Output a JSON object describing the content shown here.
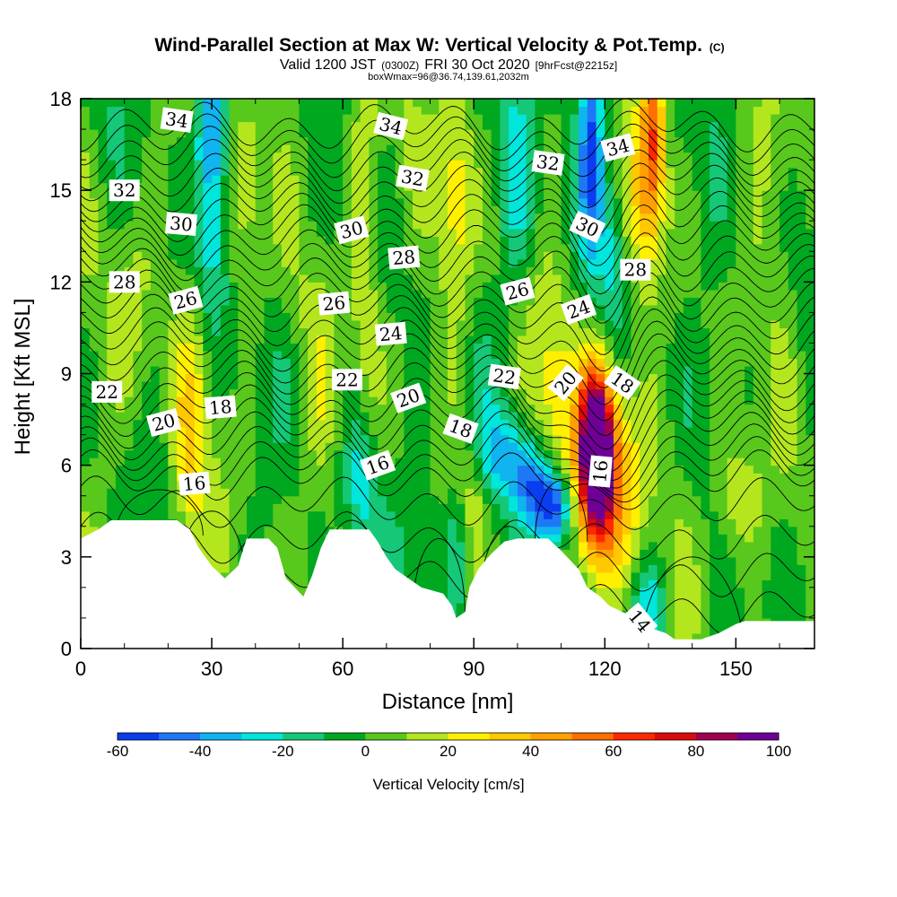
{
  "chart_data": {
    "type": "heatmap",
    "title": "Wind-Parallel Section at Max W: Vertical Velocity & Pot.Temp.",
    "title_mark": "(C)",
    "subtitle_parts": [
      "Valid 1200 JST",
      "(0300Z)",
      "FRI 30 Oct 2020",
      "[9hrFcst@2215z]"
    ],
    "subtitle2": "boxWmax=96@36.74,139.61,2032m",
    "xlabel": "Distance [nm]",
    "ylabel": "Height [Kft MSL]",
    "xlim": [
      0,
      168
    ],
    "ylim": [
      0,
      18
    ],
    "xticks": [
      0,
      30,
      60,
      90,
      120,
      150
    ],
    "yticks": [
      0,
      3,
      6,
      9,
      12,
      15,
      18
    ],
    "colorbar": {
      "label": "Vertical Velocity [cm/s]",
      "levels": [
        -60,
        -50,
        -40,
        -30,
        -20,
        -10,
        0,
        10,
        20,
        30,
        40,
        50,
        60,
        70,
        80,
        90,
        100
      ],
      "tick_labels": [
        -60,
        -40,
        -20,
        0,
        20,
        40,
        60,
        80,
        100
      ],
      "colors": [
        "#0a3cf0",
        "#1e78f5",
        "#10b4f0",
        "#00e6dc",
        "#14c878",
        "#00a820",
        "#58c81c",
        "#b4e61e",
        "#fff000",
        "#ffc800",
        "#ffa000",
        "#ff6e00",
        "#ff2800",
        "#dc0a0a",
        "#a00050",
        "#6e0096"
      ]
    },
    "terrain": [
      [
        0,
        3.6
      ],
      [
        4,
        3.9
      ],
      [
        7,
        4.2
      ],
      [
        22,
        4.2
      ],
      [
        25,
        3.9
      ],
      [
        27,
        3.3
      ],
      [
        30,
        2.7
      ],
      [
        33,
        2.3
      ],
      [
        36,
        2.7
      ],
      [
        38,
        3.6
      ],
      [
        43,
        3.6
      ],
      [
        45,
        3.3
      ],
      [
        47,
        2.3
      ],
      [
        49,
        2.0
      ],
      [
        51,
        1.7
      ],
      [
        53,
        2.4
      ],
      [
        55,
        3.3
      ],
      [
        57,
        3.9
      ],
      [
        66,
        3.9
      ],
      [
        68,
        3.5
      ],
      [
        70,
        3.0
      ],
      [
        72,
        2.6
      ],
      [
        75,
        2.3
      ],
      [
        78,
        2.0
      ],
      [
        83,
        1.8
      ],
      [
        85,
        1.4
      ],
      [
        86,
        1.0
      ],
      [
        88,
        1.2
      ],
      [
        89,
        2.0
      ],
      [
        91,
        2.6
      ],
      [
        94,
        3.1
      ],
      [
        97,
        3.5
      ],
      [
        100,
        3.6
      ],
      [
        107,
        3.6
      ],
      [
        110,
        3.2
      ],
      [
        114,
        2.6
      ],
      [
        116,
        2.0
      ],
      [
        119,
        1.7
      ],
      [
        121,
        1.4
      ],
      [
        124,
        1.2
      ],
      [
        127,
        1.0
      ],
      [
        130,
        0.7
      ],
      [
        134,
        0.5
      ],
      [
        136,
        0.3
      ],
      [
        142,
        0.3
      ],
      [
        146,
        0.5
      ],
      [
        150,
        0.8
      ],
      [
        152,
        0.9
      ],
      [
        168,
        0.9
      ]
    ],
    "w_field": [
      {
        "x": 118,
        "y": 6.4,
        "sx": 2.5,
        "sy": 1.8,
        "w": 105
      },
      {
        "x": 120,
        "y": 5.5,
        "sx": 5.0,
        "sy": 2.6,
        "w": 55
      },
      {
        "x": 108,
        "y": 8.0,
        "sx": 4.0,
        "sy": 3.0,
        "w": 20
      },
      {
        "x": 108,
        "y": 4.6,
        "sx": 3.0,
        "sy": 0.9,
        "w": -70
      },
      {
        "x": 103,
        "y": 5.6,
        "sx": 3.0,
        "sy": 1.0,
        "w": -40
      },
      {
        "x": 96,
        "y": 6.5,
        "sx": 4.0,
        "sy": 1.0,
        "w": -25
      },
      {
        "x": 131,
        "y": 16.8,
        "sx": 2.0,
        "sy": 2.2,
        "w": 55
      },
      {
        "x": 128,
        "y": 14.5,
        "sx": 2.5,
        "sy": 2.0,
        "w": 20
      },
      {
        "x": 117,
        "y": 16.5,
        "sx": 2.0,
        "sy": 2.5,
        "w": -50
      },
      {
        "x": 122,
        "y": 13.0,
        "sx": 2.0,
        "sy": 2.0,
        "w": -20
      },
      {
        "x": 30,
        "y": 17.0,
        "sx": 2.5,
        "sy": 1.5,
        "w": -45
      },
      {
        "x": 30,
        "y": 13.5,
        "sx": 2.5,
        "sy": 2.0,
        "w": -25
      },
      {
        "x": 25,
        "y": 6.0,
        "sx": 3.0,
        "sy": 3.0,
        "w": 25
      },
      {
        "x": 38,
        "y": 14.5,
        "sx": 3.0,
        "sy": 3.5,
        "w": 20
      },
      {
        "x": 65,
        "y": 14.0,
        "sx": 2.5,
        "sy": 4.5,
        "w": 25
      },
      {
        "x": 86,
        "y": 15.0,
        "sx": 3.0,
        "sy": 3.5,
        "w": 28
      },
      {
        "x": 100,
        "y": 15.5,
        "sx": 3.0,
        "sy": 3.0,
        "w": -25
      },
      {
        "x": 150,
        "y": 5.0,
        "sx": 4.0,
        "sy": 1.5,
        "w": 25
      },
      {
        "x": 64,
        "y": 5.5,
        "sx": 2.5,
        "sy": 1.5,
        "w": -25
      },
      {
        "x": 78,
        "y": 4.2,
        "sx": 3.5,
        "sy": 1.8,
        "w": -15
      },
      {
        "x": 86,
        "y": 3.0,
        "sx": 2.0,
        "sy": 1.5,
        "w": -20
      },
      {
        "x": 130,
        "y": 1.5,
        "sx": 3.0,
        "sy": 1.0,
        "w": -25
      },
      {
        "x": 90,
        "y": 5.0,
        "sx": 2.0,
        "sy": 1.5,
        "w": 15
      },
      {
        "x": 55,
        "y": 8.0,
        "sx": 3.0,
        "sy": 2.0,
        "w": 12
      },
      {
        "x": 12,
        "y": 11.0,
        "sx": 4.0,
        "sy": 3.0,
        "w": 15
      },
      {
        "x": 160,
        "y": 15.0,
        "sx": 4.0,
        "sy": 3.0,
        "w": 10
      }
    ],
    "theta_levels": [
      14,
      16,
      18,
      20,
      22,
      24,
      26,
      28,
      30,
      32,
      34
    ],
    "theta_labels": [
      {
        "text": "34",
        "x": 22,
        "y": 17.3,
        "rot": 8
      },
      {
        "text": "34",
        "x": 71,
        "y": 17.1,
        "rot": 14
      },
      {
        "text": "34",
        "x": 123,
        "y": 16.4,
        "rot": -15
      },
      {
        "text": "32",
        "x": 10,
        "y": 15.0,
        "rot": 0
      },
      {
        "text": "32",
        "x": 76,
        "y": 15.4,
        "rot": 10
      },
      {
        "text": "32",
        "x": 107,
        "y": 15.9,
        "rot": 8
      },
      {
        "text": "30",
        "x": 23,
        "y": 13.9,
        "rot": 5
      },
      {
        "text": "30",
        "x": 62,
        "y": 13.7,
        "rot": -15
      },
      {
        "text": "30",
        "x": 116,
        "y": 13.8,
        "rot": 25
      },
      {
        "text": "28",
        "x": 10,
        "y": 12.0,
        "rot": 0
      },
      {
        "text": "28",
        "x": 74,
        "y": 12.8,
        "rot": -5
      },
      {
        "text": "28",
        "x": 127,
        "y": 12.4,
        "rot": 0
      },
      {
        "text": "26",
        "x": 24,
        "y": 11.4,
        "rot": -15
      },
      {
        "text": "26",
        "x": 58,
        "y": 11.3,
        "rot": -5
      },
      {
        "text": "26",
        "x": 100,
        "y": 11.7,
        "rot": -15
      },
      {
        "text": "24",
        "x": 71,
        "y": 10.3,
        "rot": -5
      },
      {
        "text": "24",
        "x": 114,
        "y": 11.1,
        "rot": -20
      },
      {
        "text": "22",
        "x": 6,
        "y": 8.4,
        "rot": 0
      },
      {
        "text": "22",
        "x": 61,
        "y": 8.8,
        "rot": 0
      },
      {
        "text": "22",
        "x": 97,
        "y": 8.9,
        "rot": 8
      },
      {
        "text": "20",
        "x": 19,
        "y": 7.4,
        "rot": -15
      },
      {
        "text": "20",
        "x": 75,
        "y": 8.2,
        "rot": -20
      },
      {
        "text": "20",
        "x": 111,
        "y": 8.7,
        "rot": -50
      },
      {
        "text": "18",
        "x": 32,
        "y": 7.9,
        "rot": -5
      },
      {
        "text": "18",
        "x": 87,
        "y": 7.2,
        "rot": 20
      },
      {
        "text": "18",
        "x": 124,
        "y": 8.7,
        "rot": 35
      },
      {
        "text": "16",
        "x": 26,
        "y": 5.4,
        "rot": -5
      },
      {
        "text": "16",
        "x": 68,
        "y": 6.0,
        "rot": -20
      },
      {
        "text": "16",
        "x": 119,
        "y": 5.8,
        "rot": -85
      },
      {
        "text": "14",
        "x": 128,
        "y": 0.9,
        "rot": 50
      }
    ],
    "grid": false,
    "legend_placement": "bottom"
  }
}
